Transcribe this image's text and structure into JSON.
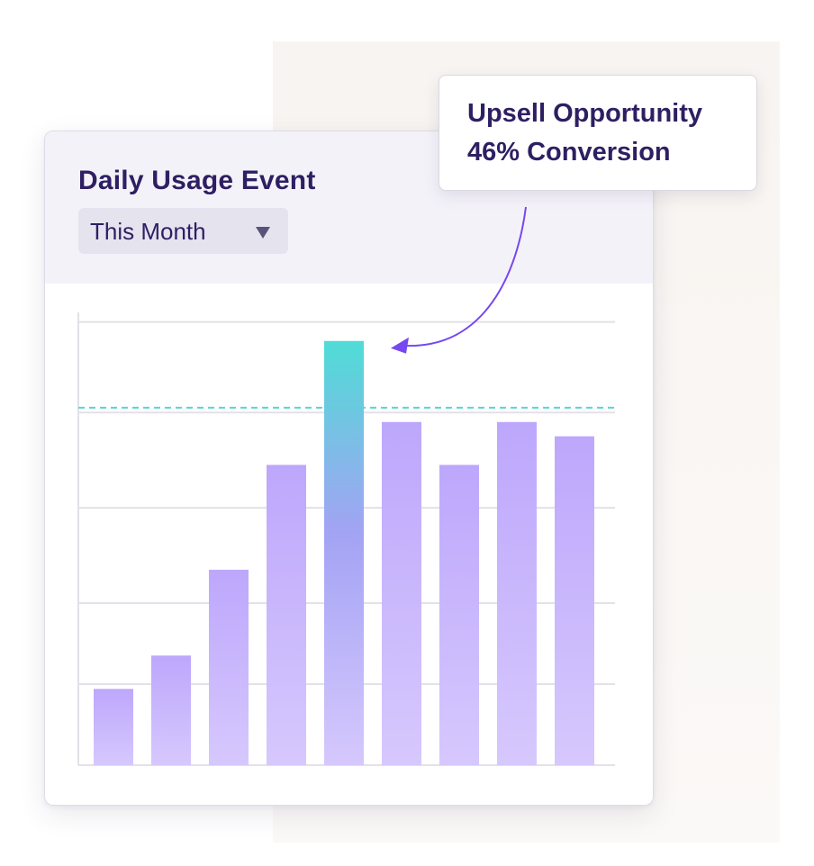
{
  "colors": {
    "title": "#2e1f63",
    "bar_top": "#bda7fc",
    "bar_bottom": "#d6c8fd",
    "highlight_top": "#4fdcd6",
    "highlight_mid": "#a3a3f4",
    "threshold_line": "#55d6d2",
    "arrow": "#7548f0",
    "grid": "#e3e1e8"
  },
  "card": {
    "title": "Daily Usage Event",
    "dropdown": {
      "selected": "This Month",
      "icon": "caret-down-icon"
    }
  },
  "callout": {
    "line1": "Upsell Opportunity",
    "line2": "46% Conversion",
    "pointer_icon": "curved-arrow-icon"
  },
  "chart_data": {
    "type": "bar",
    "title": "Daily Usage Event",
    "xlabel": "",
    "ylabel": "",
    "categories": [
      "",
      "",
      "",
      "",
      "",
      "",
      "",
      "",
      ""
    ],
    "values": [
      16,
      23,
      41,
      63,
      89,
      72,
      63,
      72,
      69
    ],
    "highlight_index": 4,
    "threshold": 75,
    "ylim": [
      0,
      95
    ],
    "grid": true,
    "gridlines": [
      17,
      34,
      54,
      74,
      93
    ],
    "legend": "none",
    "annotation": "Upsell Opportunity 46% Conversion"
  }
}
